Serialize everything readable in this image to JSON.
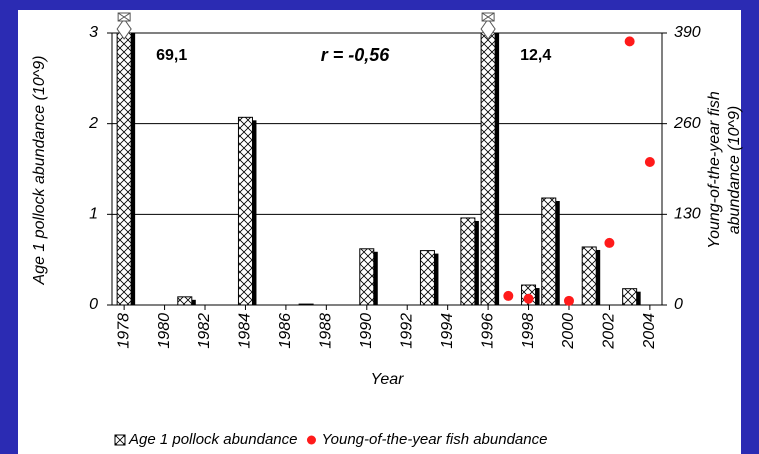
{
  "chart_data": {
    "type": "bar",
    "ylabel": "Age 1 pollock abundance (10^9)",
    "y2label": [
      "Young-of-the-year fish",
      "abundance (10^9)"
    ],
    "xlabel": "Year",
    "annotation": "r = -0,56",
    "xlim": [
      1977.4,
      2004.6
    ],
    "xticks": [
      1978,
      1980,
      1982,
      1984,
      1986,
      1988,
      1990,
      1992,
      1994,
      1996,
      1998,
      2000,
      2002,
      2004
    ],
    "ylim": [
      0,
      3
    ],
    "yticks": [
      0,
      1,
      2,
      3
    ],
    "y2lim": [
      0,
      390
    ],
    "y2ticks": [
      0,
      130,
      260,
      390
    ],
    "grid": true,
    "legend": "bottom",
    "series": [
      {
        "name": "Age 1 pollock abundance",
        "type": "bar",
        "color": "#ffffff",
        "x": [
          1978,
          1981,
          1984,
          1987,
          1990,
          1993,
          1995,
          1996,
          1998,
          1999,
          2001,
          2003
        ],
        "values": [
          69.1,
          0.09,
          2.07,
          0.01,
          0.62,
          0.6,
          0.96,
          12.4,
          0.22,
          1.18,
          0.64,
          0.18
        ],
        "value_labels": [
          "69,1",
          null,
          null,
          null,
          null,
          null,
          null,
          "12,4",
          null,
          null,
          null,
          null
        ]
      },
      {
        "name": "Young-of-the-year fish abundance",
        "type": "scatter",
        "color": "#ff1a1a",
        "axis": "y2",
        "x": [
          1997,
          1998,
          2000,
          2002,
          2003,
          2004
        ],
        "values": [
          13,
          9,
          6,
          89,
          378,
          205
        ]
      }
    ]
  }
}
